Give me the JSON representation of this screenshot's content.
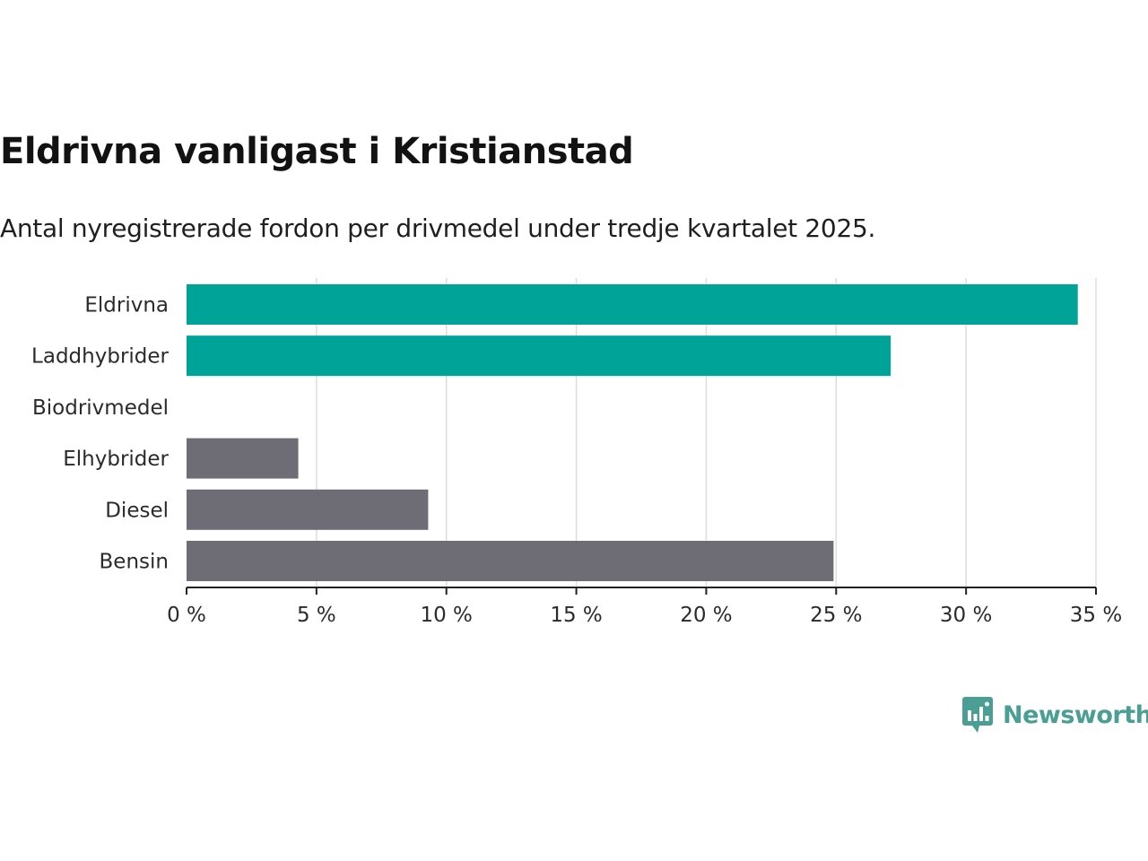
{
  "header": {
    "title": "Eldrivna vanligast i Kristianstad",
    "subtitle": "Antal nyregistrerade fordon per drivmedel under tredje kvartalet 2025."
  },
  "colors": {
    "highlight": "#00a398",
    "normal": "#6e6d75",
    "grid": "#dddddd",
    "axis": "#222222",
    "brand": "#4a9e93"
  },
  "chart_data": {
    "type": "bar",
    "orientation": "horizontal",
    "title": "Eldrivna vanligast i Kristianstad",
    "subtitle": "Antal nyregistrerade fordon per drivmedel under tredje kvartalet 2025.",
    "xlabel": "",
    "ylabel": "",
    "xlim": [
      0,
      35
    ],
    "ticks": [
      0,
      5,
      10,
      15,
      20,
      25,
      30,
      35
    ],
    "tick_labels": [
      "0 %",
      "5 %",
      "10 %",
      "15 %",
      "20 %",
      "25 %",
      "30 %",
      "35 %"
    ],
    "grid": true,
    "categories": [
      "Eldrivna",
      "Laddhybrider",
      "Biodrivmedel",
      "Elhybrider",
      "Diesel",
      "Bensin"
    ],
    "values": [
      34.3,
      27.1,
      0,
      4.3,
      9.3,
      24.9
    ],
    "highlight": [
      true,
      true,
      false,
      false,
      false,
      false
    ]
  },
  "brand": {
    "name": "Newsworthy",
    "icon": "newsworthy-logo-icon"
  }
}
